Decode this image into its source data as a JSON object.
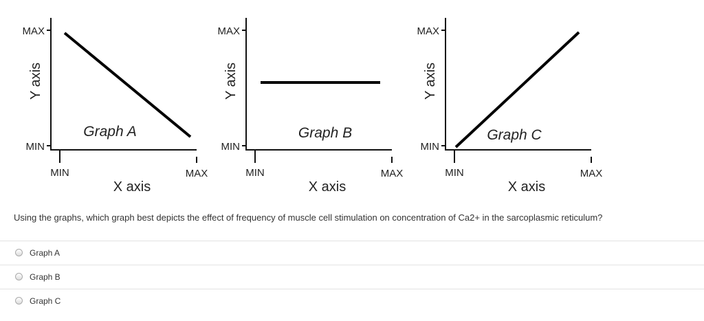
{
  "graphs": [
    {
      "label": "Graph A",
      "y_axis": "Y axis",
      "x_axis": "X axis",
      "y_max": "MAX",
      "y_min": "MIN",
      "x_min": "MIN",
      "x_max": "MAX"
    },
    {
      "label": "Graph B",
      "y_axis": "Y axis",
      "x_axis": "X axis",
      "y_max": "MAX",
      "y_min": "MIN",
      "x_min": "MIN",
      "x_max": "MAX"
    },
    {
      "label": "Graph C",
      "y_axis": "Y axis",
      "x_axis": "X axis",
      "y_max": "MAX",
      "y_min": "MIN",
      "x_min": "MIN",
      "x_max": "MAX"
    }
  ],
  "question": "Using the graphs, which graph best depicts the effect of frequency of muscle cell stimulation on concentration of Ca2+ in the sarcoplasmic reticulum?",
  "options": [
    "Graph A",
    "Graph B",
    "Graph C"
  ]
}
